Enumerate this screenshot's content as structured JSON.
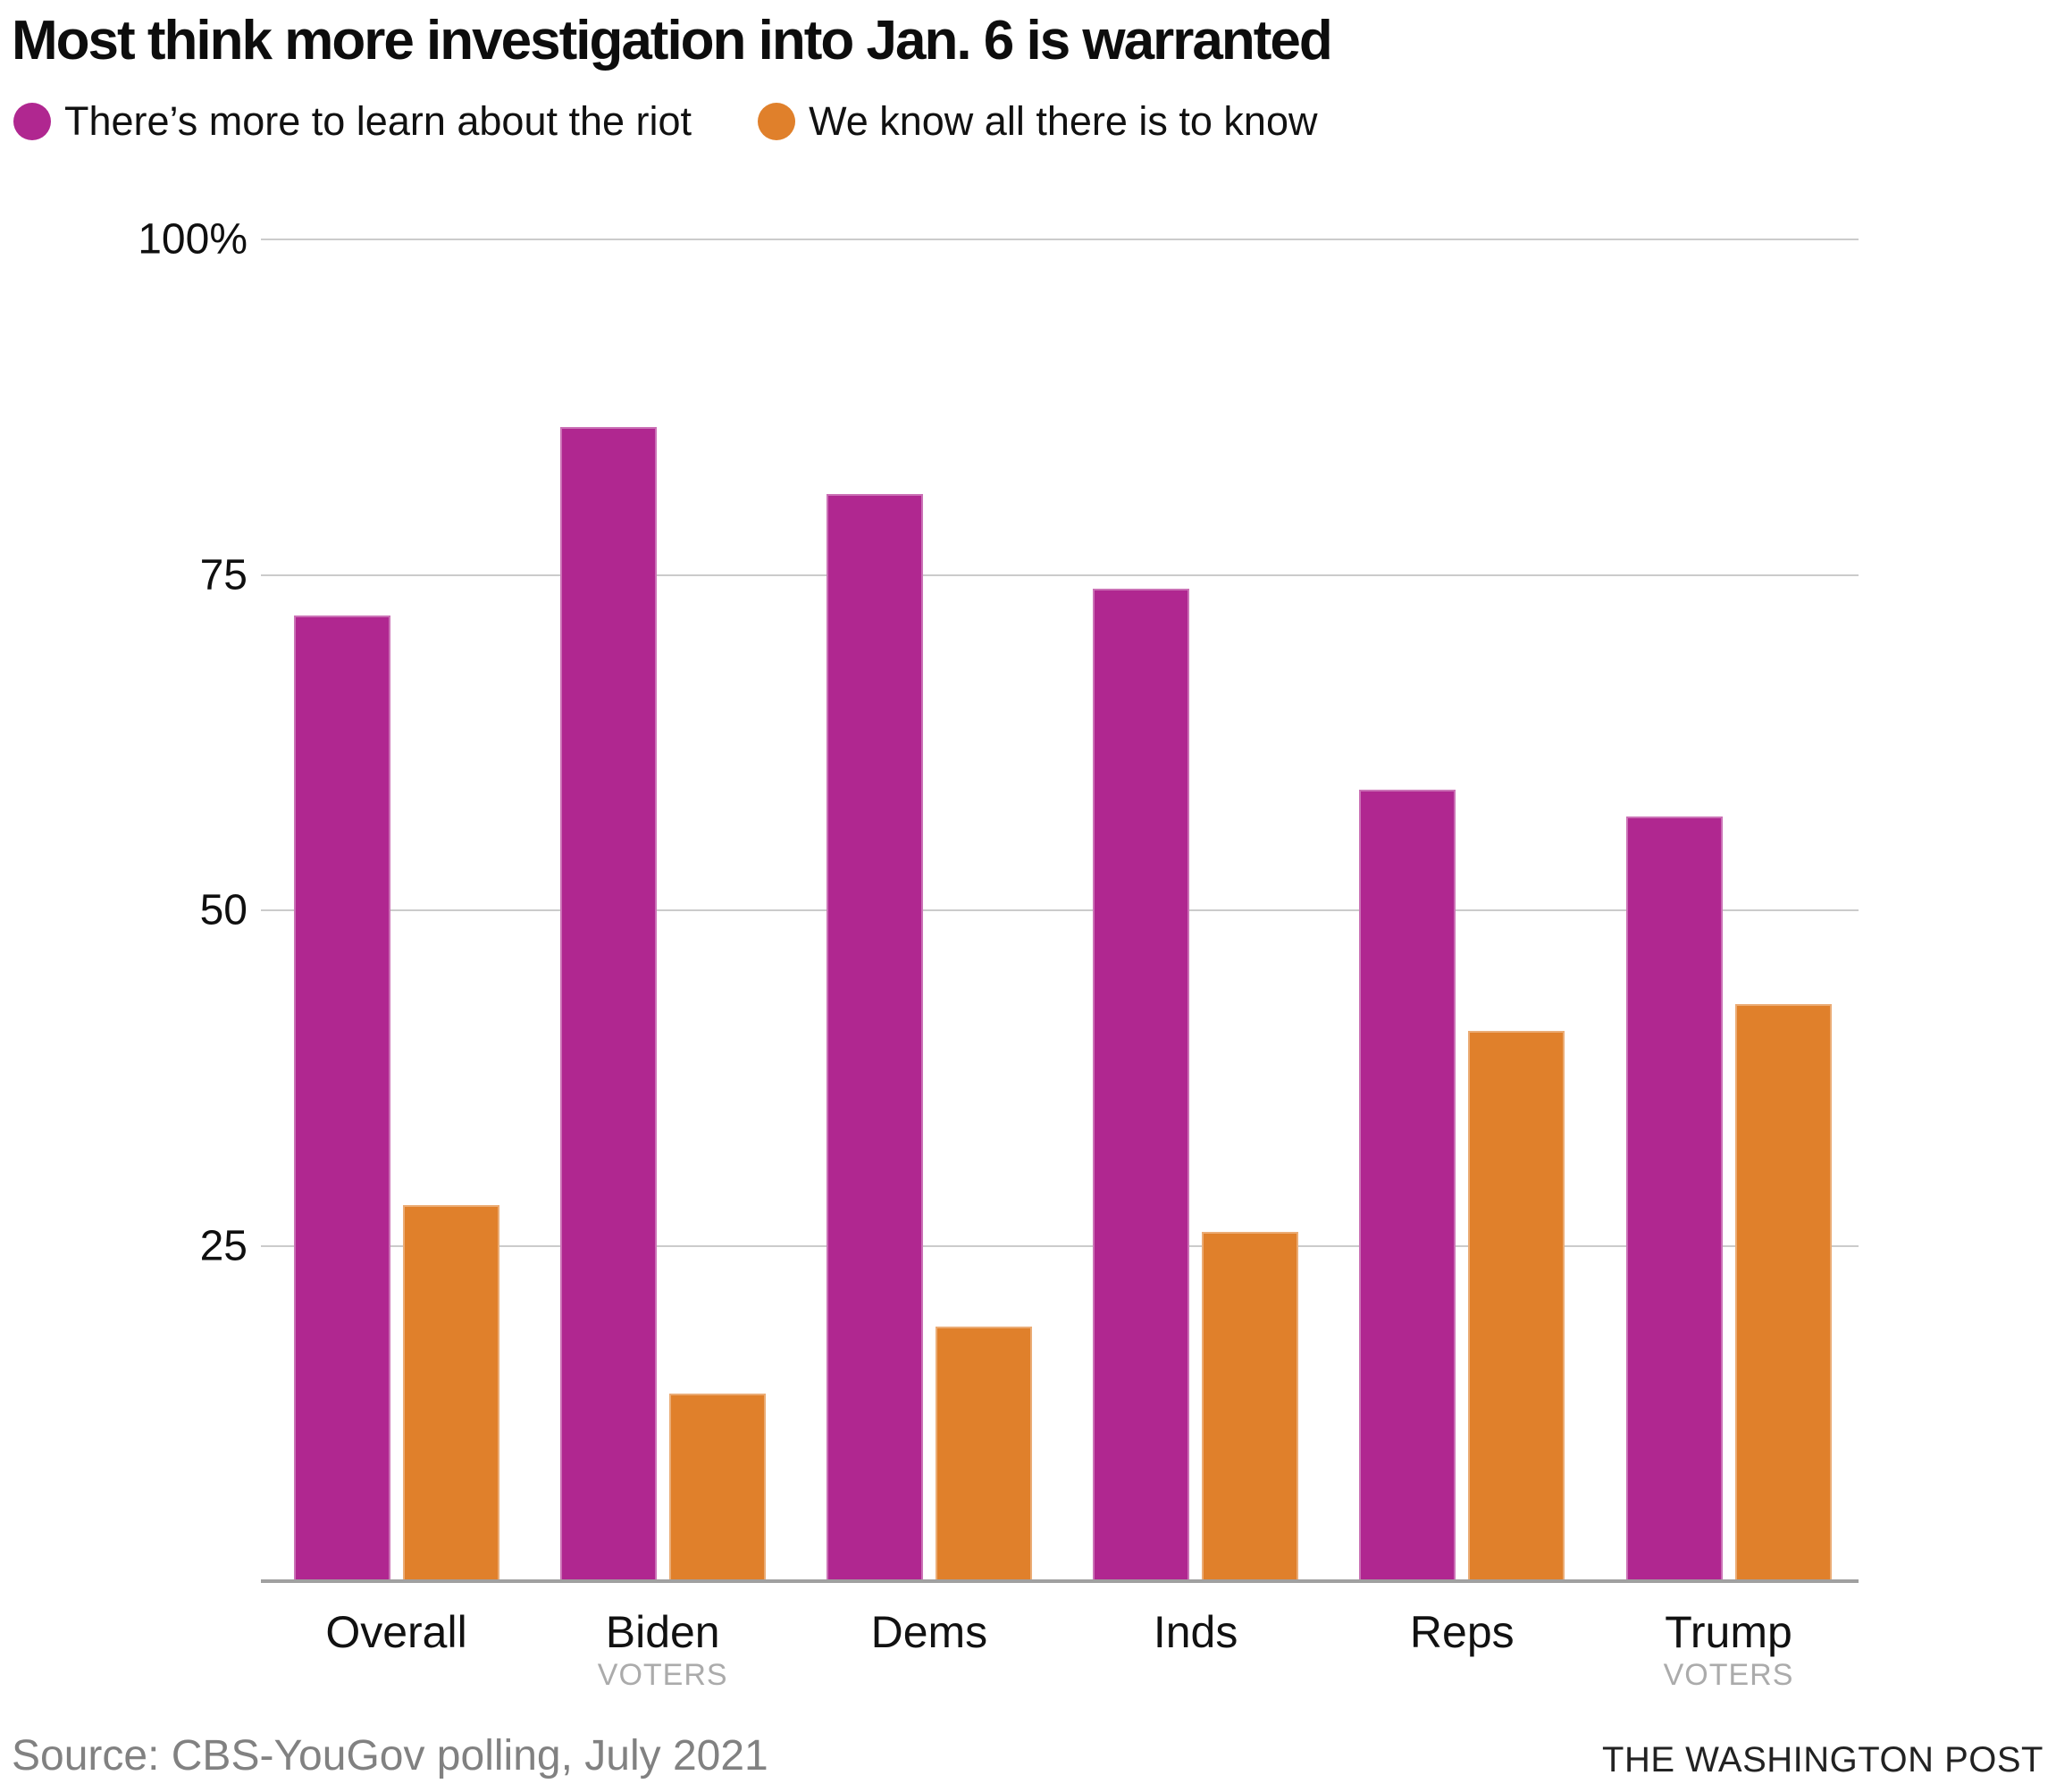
{
  "title": "Most think more investigation into Jan. 6 is warranted",
  "legend": {
    "items": [
      {
        "label": "There’s more to learn about the riot",
        "color": "#b02790"
      },
      {
        "label": "We know all there is to know",
        "color": "#e0802b"
      }
    ]
  },
  "chart_data": {
    "type": "bar",
    "categories": [
      "Overall",
      "Biden",
      "Dems",
      "Inds",
      "Reps",
      "Trump"
    ],
    "category_sublabels": [
      "",
      "VOTERS",
      "",
      "",
      "",
      "VOTERS"
    ],
    "series": [
      {
        "name": "There’s more to learn about the riot",
        "color": "#b02790",
        "values": [
          72,
          86,
          81,
          74,
          59,
          57
        ]
      },
      {
        "name": "We know all there is to know",
        "color": "#e0802b",
        "values": [
          28,
          14,
          19,
          26,
          41,
          43
        ]
      }
    ],
    "ylabel": "",
    "xlabel": "",
    "ylim": [
      0,
      100
    ],
    "yticks": [
      {
        "value": 100,
        "label": "100%"
      },
      {
        "value": 75,
        "label": "75"
      },
      {
        "value": 50,
        "label": "50"
      },
      {
        "value": 25,
        "label": "25"
      }
    ],
    "grid": true,
    "legend_position": "top-left",
    "colors": {
      "gridline": "#cbcbcb",
      "baseline": "#a0a0a0",
      "tick_text": "#0f0f0f",
      "sublabel_text": "#ababab"
    }
  },
  "footer": {
    "source": "Source: CBS-YouGov polling, July 2021",
    "credit": "THE WASHINGTON POST"
  }
}
